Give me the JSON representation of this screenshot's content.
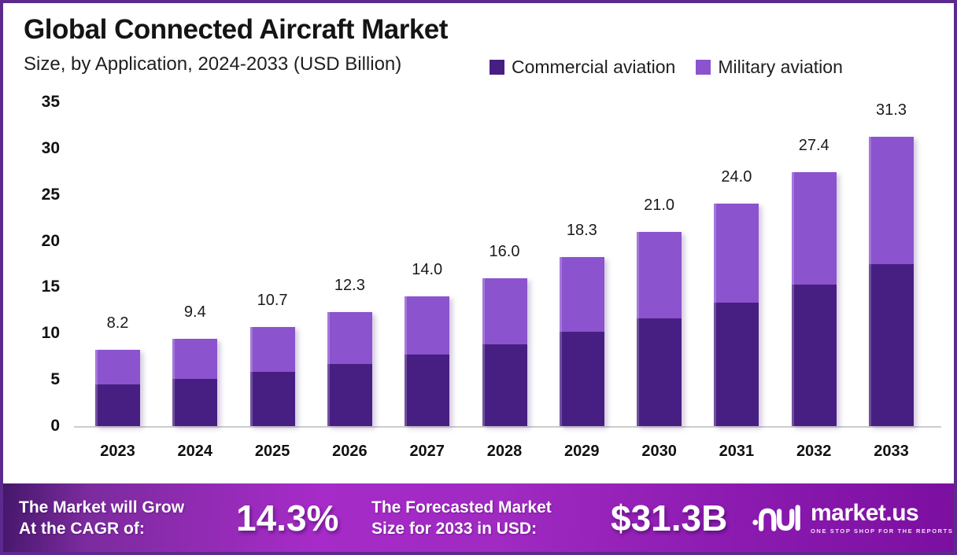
{
  "header": {
    "title": "Global Connected Aircraft Market",
    "subtitle": "Size, by Application, 2024-2033 (USD Billion)"
  },
  "chart_data": {
    "type": "bar",
    "stacked": true,
    "title": "Global Connected Aircraft Market",
    "subtitle": "Size, by Application, 2024-2033 (USD Billion)",
    "unit": "USD Billion",
    "categories": [
      "2023",
      "2024",
      "2025",
      "2026",
      "2027",
      "2028",
      "2029",
      "2030",
      "2031",
      "2032",
      "2033"
    ],
    "series": [
      {
        "name": "Commercial aviation",
        "color": "#471F82",
        "values": [
          4.5,
          5.1,
          5.9,
          6.7,
          7.7,
          8.8,
          10.2,
          11.6,
          13.3,
          15.3,
          17.5
        ]
      },
      {
        "name": "Military aviation",
        "color": "#8B53CD",
        "values": [
          3.7,
          4.3,
          4.8,
          5.6,
          6.3,
          7.2,
          8.1,
          9.4,
          10.7,
          12.1,
          13.8
        ]
      }
    ],
    "totals": [
      8.2,
      9.4,
      10.7,
      12.3,
      14.0,
      16.0,
      18.3,
      21.0,
      24.0,
      27.4,
      31.3
    ],
    "total_labels": [
      "8.2",
      "9.4",
      "10.7",
      "12.3",
      "14.0",
      "16.0",
      "18.3",
      "21.0",
      "24.0",
      "27.4",
      "31.3"
    ],
    "xlabel": "",
    "ylabel": "",
    "ylim": [
      0,
      35
    ],
    "yticks": [
      0,
      5,
      10,
      15,
      20,
      25,
      30,
      35
    ],
    "grid": false,
    "legend_position": "top-right"
  },
  "banner": {
    "cagr_label_line1": "The Market will Grow",
    "cagr_label_line2": "At the CAGR of:",
    "cagr_value": "14.3%",
    "forecast_label_line1": "The Forecasted Market",
    "forecast_label_line2": "Size for 2033 in USD:",
    "forecast_value": "$31.3B",
    "logo_text": "market.us",
    "logo_tagline": "ONE STOP SHOP FOR THE REPORTS"
  },
  "colors": {
    "commercial": "#471F82",
    "military": "#8B53CD",
    "frame_border": "#5C2A8E",
    "axis_line": "#CCCCCC",
    "banner_gradient_start": "#45176B",
    "banner_gradient_mid": "#A62BC8",
    "banner_gradient_end": "#7B0FA0",
    "text_dark": "#1A1A1A"
  }
}
